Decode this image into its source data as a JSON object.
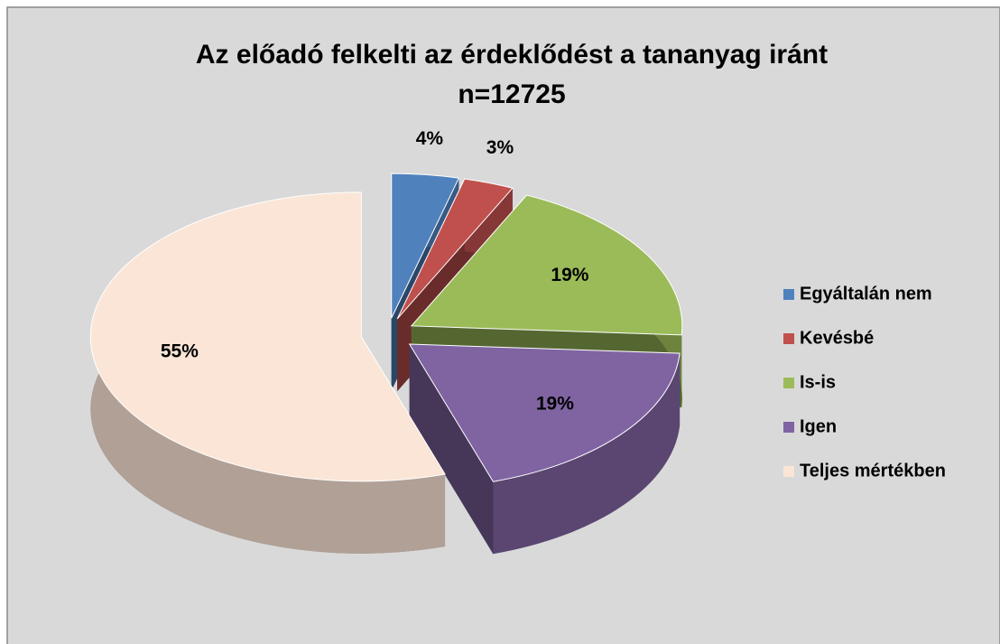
{
  "chart_data": {
    "type": "pie",
    "title": "Az előadó felkelti az érdeklődést a tananyag iránt",
    "subtitle": "n=12725",
    "categories": [
      "Egyáltalán nem",
      "Kevésbé",
      "Is-is",
      "Igen",
      "Teljes mértékben"
    ],
    "values": [
      4,
      3,
      19,
      19,
      55
    ],
    "value_labels": [
      "4%",
      "3%",
      "19%",
      "19%",
      "55%"
    ],
    "colors": [
      "#4f81bd",
      "#c0504d",
      "#9bbb59",
      "#8064a2",
      "#fbe5d6"
    ],
    "legend": "right"
  }
}
